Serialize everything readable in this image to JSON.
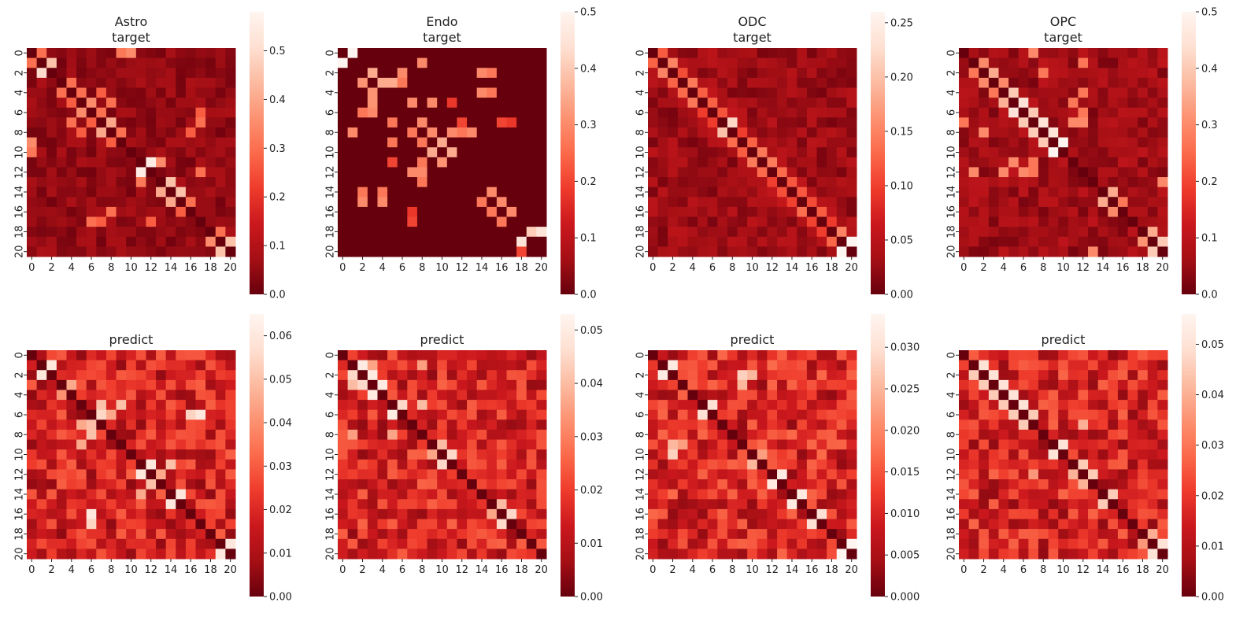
{
  "colormap": {
    "name": "Reds_r",
    "stops": [
      "#67000d",
      "#a50f15",
      "#cb181d",
      "#ef3b2c",
      "#fb6a4a",
      "#fc9272",
      "#fcbba1",
      "#fee0d2",
      "#fff5f0"
    ]
  },
  "chart_data": [
    {
      "type": "heatmap",
      "row": 0,
      "title": [
        "Astro",
        "target"
      ],
      "size": 21,
      "vmin": 0.0,
      "vmax": 0.58,
      "cbar_ticks": [
        "0.0",
        "0.1",
        "0.2",
        "0.3",
        "0.4",
        "0.5"
      ],
      "x_ticks": [
        "0",
        "2",
        "4",
        "6",
        "8",
        "10",
        "12",
        "14",
        "16",
        "18",
        "20"
      ],
      "y_ticks": [
        "0",
        "2",
        "4",
        "6",
        "8",
        "10",
        "12",
        "14",
        "16",
        "18",
        "20"
      ],
      "bright_cells": [
        [
          0,
          1,
          0.3
        ],
        [
          1,
          2,
          0.45
        ],
        [
          1,
          0,
          0.3
        ],
        [
          0,
          10,
          0.35
        ],
        [
          2,
          1,
          0.5
        ],
        [
          3,
          4,
          0.3
        ],
        [
          4,
          5,
          0.3
        ],
        [
          4,
          3,
          0.3
        ],
        [
          5,
          6,
          0.35
        ],
        [
          5,
          8,
          0.3
        ],
        [
          6,
          5,
          0.35
        ],
        [
          6,
          7,
          0.3
        ],
        [
          7,
          8,
          0.4
        ],
        [
          8,
          7,
          0.4
        ],
        [
          7,
          4,
          0.3
        ],
        [
          8,
          9,
          0.3
        ],
        [
          9,
          0,
          0.35
        ],
        [
          11,
          12,
          0.55
        ],
        [
          12,
          11,
          0.55
        ],
        [
          11,
          13,
          0.35
        ],
        [
          13,
          14,
          0.45
        ],
        [
          14,
          15,
          0.45
        ],
        [
          15,
          16,
          0.3
        ],
        [
          16,
          8,
          0.3
        ],
        [
          17,
          6,
          0.3
        ],
        [
          19,
          18,
          0.35
        ],
        [
          19,
          20,
          0.45
        ],
        [
          20,
          19,
          0.45
        ],
        [
          18,
          19,
          0.3
        ],
        [
          12,
          17,
          0.3
        ],
        [
          7,
          17,
          0.3
        ],
        [
          15,
          14,
          0.4
        ]
      ],
      "base_level": 0.05
    },
    {
      "type": "heatmap",
      "row": 0,
      "title": [
        "Endo",
        "target"
      ],
      "size": 21,
      "vmin": 0.0,
      "vmax": 0.5,
      "cbar_ticks": [
        "0.0",
        "0.1",
        "0.2",
        "0.3",
        "0.4",
        "0.5"
      ],
      "x_ticks": [
        "0",
        "2",
        "4",
        "6",
        "8",
        "10",
        "12",
        "14",
        "16",
        "18",
        "20"
      ],
      "y_ticks": [
        "0",
        "2",
        "4",
        "6",
        "8",
        "10",
        "12",
        "14",
        "16",
        "18",
        "20"
      ],
      "bright_cells": [
        [
          0,
          1,
          0.5
        ],
        [
          1,
          0,
          0.5
        ],
        [
          1,
          8,
          0.3
        ],
        [
          2,
          3,
          0.35
        ],
        [
          3,
          4,
          0.35
        ],
        [
          3,
          5,
          0.35
        ],
        [
          2,
          6,
          0.3
        ],
        [
          2,
          14,
          0.3
        ],
        [
          4,
          14,
          0.3
        ],
        [
          5,
          7,
          0.3
        ],
        [
          5,
          9,
          0.3
        ],
        [
          6,
          3,
          0.3
        ],
        [
          7,
          8,
          0.3
        ],
        [
          8,
          1,
          0.3
        ],
        [
          8,
          9,
          0.3
        ],
        [
          8,
          11,
          0.3
        ],
        [
          9,
          10,
          0.35
        ],
        [
          10,
          9,
          0.35
        ],
        [
          10,
          11,
          0.35
        ],
        [
          11,
          5,
          0.2
        ],
        [
          12,
          8,
          0.3
        ],
        [
          13,
          8,
          0.2
        ],
        [
          14,
          15,
          0.3
        ],
        [
          15,
          16,
          0.3
        ],
        [
          16,
          17,
          0.3
        ],
        [
          17,
          7,
          0.2
        ],
        [
          18,
          20,
          0.45
        ],
        [
          19,
          18,
          0.45
        ],
        [
          20,
          18,
          0.2
        ],
        [
          12,
          7,
          0.3
        ],
        [
          15,
          2,
          0.3
        ],
        [
          15,
          4,
          0.3
        ],
        [
          7,
          12,
          0.2
        ],
        [
          8,
          13,
          0.3
        ],
        [
          7,
          16,
          0.2
        ]
      ],
      "base_level": 0.0
    },
    {
      "type": "heatmap",
      "row": 0,
      "title": [
        "ODC",
        "target"
      ],
      "size": 21,
      "vmin": 0.0,
      "vmax": 0.26,
      "cbar_ticks": [
        "0.00",
        "0.05",
        "0.10",
        "0.15",
        "0.20",
        "0.25"
      ],
      "x_ticks": [
        "0",
        "2",
        "4",
        "6",
        "8",
        "10",
        "12",
        "14",
        "16",
        "18",
        "20"
      ],
      "y_ticks": [
        "0",
        "2",
        "4",
        "6",
        "8",
        "10",
        "12",
        "14",
        "16",
        "18",
        "20"
      ],
      "bright_cells": [
        [
          0,
          1,
          0.12
        ],
        [
          1,
          2,
          0.15
        ],
        [
          2,
          1,
          0.15
        ],
        [
          7,
          8,
          0.22
        ],
        [
          8,
          7,
          0.2
        ],
        [
          19,
          20,
          0.26
        ],
        [
          20,
          19,
          0.26
        ],
        [
          18,
          19,
          0.15
        ]
      ],
      "diagonal_band": 0.12,
      "base_level": 0.03
    },
    {
      "type": "heatmap",
      "row": 0,
      "title": [
        "OPC",
        "target"
      ],
      "size": 21,
      "vmin": 0.0,
      "vmax": 0.5,
      "cbar_ticks": [
        "0.0",
        "0.1",
        "0.2",
        "0.3",
        "0.4",
        "0.5"
      ],
      "x_ticks": [
        "0",
        "2",
        "4",
        "6",
        "8",
        "10",
        "12",
        "14",
        "16",
        "18",
        "20"
      ],
      "y_ticks": [
        "0",
        "2",
        "4",
        "6",
        "8",
        "10",
        "12",
        "14",
        "16",
        "18",
        "20"
      ],
      "bright_cells": [
        [
          1,
          2,
          0.3
        ],
        [
          2,
          3,
          0.35
        ],
        [
          3,
          4,
          0.3
        ],
        [
          4,
          5,
          0.4
        ],
        [
          5,
          6,
          0.45
        ],
        [
          6,
          7,
          0.4
        ],
        [
          7,
          8,
          0.45
        ],
        [
          8,
          9,
          0.45
        ],
        [
          9,
          10,
          0.5
        ],
        [
          10,
          9,
          0.5
        ],
        [
          9,
          8,
          0.4
        ],
        [
          6,
          5,
          0.45
        ],
        [
          7,
          6,
          0.4
        ],
        [
          3,
          2,
          0.3
        ],
        [
          8,
          2,
          0.3
        ],
        [
          7,
          11,
          0.3
        ],
        [
          7,
          12,
          0.3
        ],
        [
          11,
          5,
          0.3
        ],
        [
          12,
          6,
          0.3
        ],
        [
          14,
          15,
          0.35
        ],
        [
          15,
          14,
          0.35
        ],
        [
          16,
          15,
          0.3
        ],
        [
          18,
          19,
          0.35
        ],
        [
          19,
          20,
          0.4
        ],
        [
          20,
          19,
          0.4
        ],
        [
          20,
          13,
          0.3
        ],
        [
          13,
          20,
          0.3
        ],
        [
          0,
          7,
          0.3
        ],
        [
          12,
          1,
          0.3
        ],
        [
          12,
          4,
          0.3
        ]
      ],
      "base_level": 0.06
    },
    {
      "type": "heatmap",
      "row": 1,
      "title": [
        "predict"
      ],
      "size": 21,
      "vmin": 0.0,
      "vmax": 0.065,
      "cbar_ticks": [
        "0.00",
        "0.01",
        "0.02",
        "0.03",
        "0.04",
        "0.05",
        "0.06"
      ],
      "x_ticks": [
        "0",
        "2",
        "4",
        "6",
        "8",
        "10",
        "12",
        "14",
        "16",
        "18",
        "20"
      ],
      "y_ticks": [
        "0",
        "2",
        "4",
        "6",
        "8",
        "10",
        "12",
        "14",
        "16",
        "18",
        "20"
      ],
      "bright_cells": [
        [
          1,
          2,
          0.06
        ],
        [
          2,
          1,
          0.06
        ],
        [
          11,
          12,
          0.06
        ],
        [
          12,
          11,
          0.06
        ],
        [
          14,
          15,
          0.06
        ],
        [
          15,
          14,
          0.06
        ],
        [
          16,
          6,
          0.06
        ],
        [
          19,
          20,
          0.06
        ],
        [
          20,
          19,
          0.06
        ],
        [
          6,
          7,
          0.055
        ],
        [
          8,
          6,
          0.05
        ],
        [
          6,
          17,
          0.06
        ],
        [
          5,
          7,
          0.05
        ],
        [
          5,
          9,
          0.05
        ],
        [
          3,
          4,
          0.045
        ],
        [
          11,
          14,
          0.05
        ],
        [
          13,
          12,
          0.05
        ]
      ],
      "base_level": 0.018
    },
    {
      "type": "heatmap",
      "row": 1,
      "title": [
        "predict"
      ],
      "size": 21,
      "vmin": 0.0,
      "vmax": 0.053,
      "cbar_ticks": [
        "0.00",
        "0.01",
        "0.02",
        "0.03",
        "0.04",
        "0.05"
      ],
      "x_ticks": [
        "0",
        "2",
        "4",
        "6",
        "8",
        "10",
        "12",
        "14",
        "16",
        "18",
        "20"
      ],
      "y_ticks": [
        "0",
        "2",
        "4",
        "6",
        "8",
        "10",
        "12",
        "14",
        "16",
        "18",
        "20"
      ],
      "bright_cells": [
        [
          1,
          2,
          0.05
        ],
        [
          2,
          3,
          0.05
        ],
        [
          3,
          4,
          0.05
        ],
        [
          4,
          3,
          0.05
        ],
        [
          6,
          5,
          0.05
        ],
        [
          5,
          6,
          0.045
        ],
        [
          10,
          11,
          0.045
        ],
        [
          11,
          10,
          0.045
        ],
        [
          9,
          10,
          0.04
        ],
        [
          16,
          17,
          0.045
        ],
        [
          17,
          16,
          0.045
        ],
        [
          15,
          16,
          0.04
        ],
        [
          3,
          1,
          0.04
        ],
        [
          8,
          1,
          0.035
        ],
        [
          1,
          8,
          0.035
        ],
        [
          5,
          8,
          0.04
        ]
      ],
      "base_level": 0.015
    },
    {
      "type": "heatmap",
      "row": 1,
      "title": [
        "predict"
      ],
      "size": 21,
      "vmin": 0.0,
      "vmax": 0.034,
      "cbar_ticks": [
        "0.000",
        "0.005",
        "0.010",
        "0.015",
        "0.020",
        "0.025",
        "0.030"
      ],
      "x_ticks": [
        "0",
        "2",
        "4",
        "6",
        "8",
        "10",
        "12",
        "14",
        "16",
        "18",
        "20"
      ],
      "y_ticks": [
        "0",
        "2",
        "4",
        "6",
        "8",
        "10",
        "12",
        "14",
        "16",
        "18",
        "20"
      ],
      "bright_cells": [
        [
          1,
          2,
          0.032
        ],
        [
          2,
          1,
          0.032
        ],
        [
          5,
          6,
          0.03
        ],
        [
          6,
          5,
          0.03
        ],
        [
          12,
          13,
          0.032
        ],
        [
          13,
          12,
          0.032
        ],
        [
          14,
          15,
          0.032
        ],
        [
          15,
          14,
          0.032
        ],
        [
          16,
          17,
          0.03
        ],
        [
          17,
          16,
          0.03
        ],
        [
          19,
          20,
          0.034
        ],
        [
          20,
          19,
          0.034
        ],
        [
          2,
          9,
          0.028
        ],
        [
          10,
          2,
          0.028
        ],
        [
          3,
          9,
          0.025
        ],
        [
          11,
          10,
          0.025
        ]
      ],
      "base_level": 0.01
    },
    {
      "type": "heatmap",
      "row": 1,
      "title": [
        "predict"
      ],
      "size": 21,
      "vmin": 0.0,
      "vmax": 0.056,
      "cbar_ticks": [
        "0.00",
        "0.01",
        "0.02",
        "0.03",
        "0.04",
        "0.05"
      ],
      "x_ticks": [
        "0",
        "2",
        "4",
        "6",
        "8",
        "10",
        "12",
        "14",
        "16",
        "18",
        "20"
      ],
      "y_ticks": [
        "0",
        "2",
        "4",
        "6",
        "8",
        "10",
        "12",
        "14",
        "16",
        "18",
        "20"
      ],
      "bright_cells": [
        [
          1,
          2,
          0.05
        ],
        [
          2,
          3,
          0.05
        ],
        [
          3,
          4,
          0.05
        ],
        [
          4,
          5,
          0.05
        ],
        [
          5,
          6,
          0.05
        ],
        [
          6,
          7,
          0.045
        ],
        [
          3,
          2,
          0.045
        ],
        [
          4,
          3,
          0.045
        ],
        [
          9,
          10,
          0.05
        ],
        [
          10,
          9,
          0.05
        ],
        [
          7,
          12,
          0.04
        ],
        [
          11,
          12,
          0.045
        ],
        [
          12,
          13,
          0.045
        ],
        [
          14,
          15,
          0.045
        ],
        [
          15,
          14,
          0.045
        ],
        [
          19,
          20,
          0.05
        ],
        [
          20,
          19,
          0.05
        ],
        [
          18,
          19,
          0.04
        ],
        [
          7,
          6,
          0.045
        ]
      ],
      "base_level": 0.016
    }
  ]
}
